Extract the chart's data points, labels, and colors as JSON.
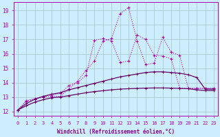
{
  "bg_color": "#cceeff",
  "grid_color": "#aacccc",
  "line_color_spiky": "#aa00aa",
  "line_color_smooth": "#660066",
  "xlabel": "Windchill (Refroidissement éolien,°C)",
  "xlabel_color": "#880088",
  "yticks": [
    12,
    13,
    14,
    15,
    16,
    17,
    18,
    19
  ],
  "xticks": [
    0,
    1,
    2,
    3,
    4,
    5,
    6,
    7,
    8,
    9,
    10,
    11,
    12,
    13,
    14,
    15,
    16,
    17,
    18,
    19,
    20,
    21,
    22,
    23
  ],
  "xlim": [
    -0.5,
    23.5
  ],
  "ylim": [
    11.7,
    19.6
  ],
  "spiky1_x": [
    0,
    1,
    2,
    3,
    4,
    5,
    6,
    7,
    8,
    9,
    10,
    11,
    12,
    13,
    14,
    15,
    16,
    17,
    18,
    19,
    20,
    21,
    22,
    23
  ],
  "spiky1_y": [
    12.1,
    12.7,
    12.85,
    13.0,
    13.05,
    13.05,
    13.55,
    14.1,
    14.85,
    15.5,
    16.9,
    17.05,
    18.8,
    19.2,
    16.9,
    15.25,
    15.35,
    17.15,
    16.1,
    15.9,
    13.6,
    13.6,
    13.6,
    13.6
  ],
  "spiky2_x": [
    0,
    1,
    2,
    3,
    4,
    5,
    6,
    7,
    8,
    9,
    10,
    11,
    12,
    13,
    14,
    15,
    16,
    17,
    18,
    19,
    20,
    21,
    22,
    23
  ],
  "spiky2_y": [
    12.1,
    12.75,
    12.9,
    13.05,
    13.15,
    13.25,
    13.8,
    14.0,
    14.5,
    16.95,
    17.05,
    16.9,
    15.4,
    15.5,
    17.3,
    17.0,
    15.9,
    15.85,
    15.65,
    13.6,
    13.6,
    13.6,
    13.6,
    13.6
  ],
  "smooth1_x": [
    0,
    1,
    2,
    3,
    4,
    5,
    6,
    7,
    8,
    9,
    10,
    11,
    12,
    13,
    14,
    15,
    16,
    17,
    18,
    19,
    20,
    21,
    22,
    23
  ],
  "smooth1_y": [
    12.1,
    12.55,
    12.85,
    13.05,
    13.2,
    13.3,
    13.5,
    13.65,
    13.8,
    13.95,
    14.1,
    14.25,
    14.4,
    14.5,
    14.6,
    14.7,
    14.75,
    14.75,
    14.7,
    14.65,
    14.55,
    14.35,
    13.55,
    13.55
  ],
  "smooth2_x": [
    0,
    1,
    2,
    3,
    4,
    5,
    6,
    7,
    8,
    9,
    10,
    11,
    12,
    13,
    14,
    15,
    16,
    17,
    18,
    19,
    20,
    21,
    22,
    23
  ],
  "smooth2_y": [
    12.1,
    12.4,
    12.65,
    12.82,
    12.95,
    13.0,
    13.1,
    13.2,
    13.3,
    13.38,
    13.44,
    13.5,
    13.55,
    13.58,
    13.6,
    13.62,
    13.63,
    13.63,
    13.62,
    13.6,
    13.58,
    13.5,
    13.45,
    13.45
  ]
}
